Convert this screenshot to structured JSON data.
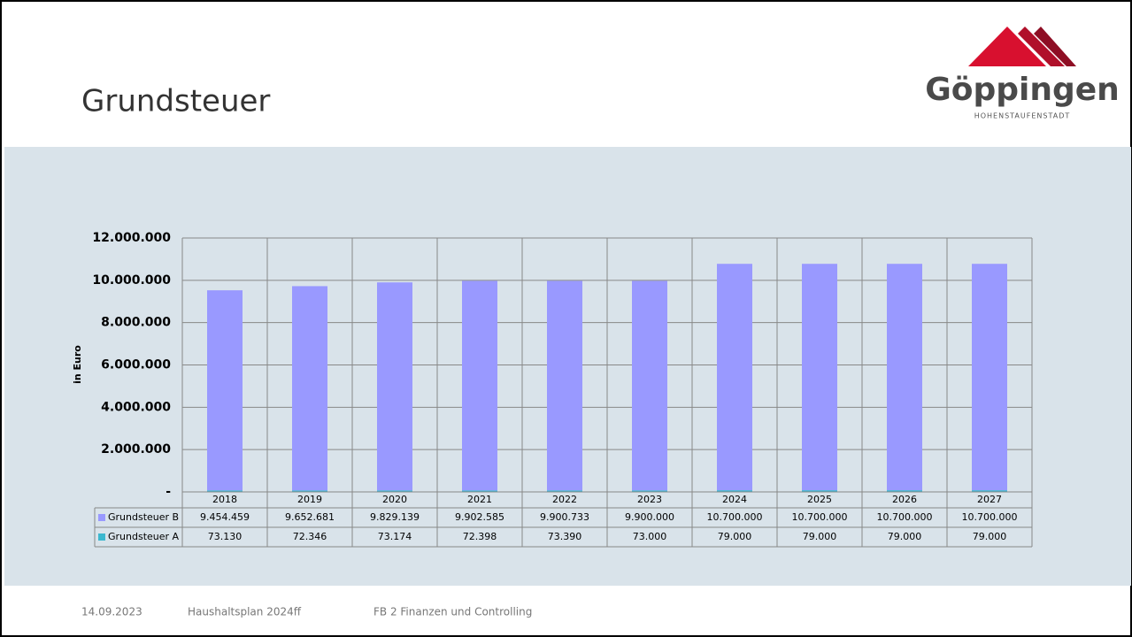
{
  "header": {
    "title": "Grundsteuer"
  },
  "logo": {
    "name": "Göppingen",
    "tagline": "HOHENSTAUFENSTADT"
  },
  "footer": {
    "date": "14.09.2023",
    "doc": "Haushaltsplan 2024ff",
    "unit": "FB 2 Finanzen und Controlling"
  },
  "chart_data": {
    "type": "stacked_bar",
    "ylabel": "in Euro",
    "categories": [
      "2018",
      "2019",
      "2020",
      "2021",
      "2022",
      "2023",
      "2024",
      "2025",
      "2026",
      "2027"
    ],
    "series": [
      {
        "name": "Grundsteuer B",
        "color": "#9999ff",
        "values": [
          9454459,
          9652681,
          9829139,
          9902585,
          9900733,
          9900000,
          10700000,
          10700000,
          10700000,
          10700000
        ],
        "value_labels": [
          "9.454.459",
          "9.652.681",
          "9.829.139",
          "9.902.585",
          "9.900.733",
          "9.900.000",
          "10.700.000",
          "10.700.000",
          "10.700.000",
          "10.700.000"
        ]
      },
      {
        "name": "Grundsteuer A",
        "color": "#3cb8cf",
        "values": [
          73130,
          72346,
          73174,
          72398,
          73390,
          73000,
          79000,
          79000,
          79000,
          79000
        ],
        "value_labels": [
          "73.130",
          "72.346",
          "73.174",
          "72.398",
          "73.390",
          "73.000",
          "79.000",
          "79.000",
          "79.000",
          "79.000"
        ]
      }
    ],
    "ylim": [
      0,
      12000000
    ],
    "yticks": [
      {
        "value": 0,
        "label": "-"
      },
      {
        "value": 2000000,
        "label": "2.000.000"
      },
      {
        "value": 4000000,
        "label": "4.000.000"
      },
      {
        "value": 6000000,
        "label": "6.000.000"
      },
      {
        "value": 8000000,
        "label": "8.000.000"
      },
      {
        "value": 10000000,
        "label": "10.000.000"
      },
      {
        "value": 12000000,
        "label": "12.000.000"
      }
    ],
    "grid": true
  }
}
